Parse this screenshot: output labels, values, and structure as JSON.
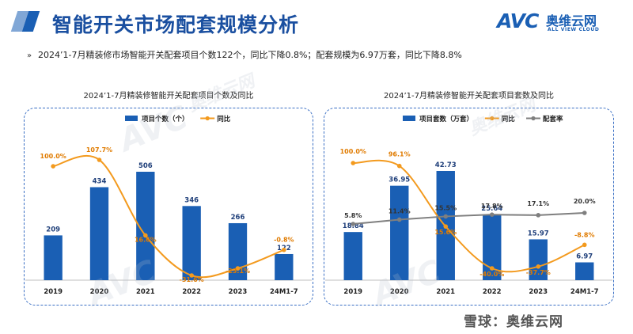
{
  "header": {
    "title": "智能开关市场配套规模分析",
    "logo_mark": "AVC",
    "logo_cn": "奥维云网",
    "logo_en": "ALL VIEW CLOUD"
  },
  "summary": {
    "bullet_icon": "double-chevron-right-icon",
    "text": "2024’1-7月精装修市场智能开关配套项目个数122个，同比下降0.8%；配套规模为6.97万套，同比下降8.8%"
  },
  "footer": {
    "watermark_text": "雪球：奥维云网"
  },
  "colors": {
    "bar": "#1a5fb4",
    "yoy_line": "#f39a1e",
    "rate_line": "#7f7f7f",
    "frame": "#3a6fc4"
  },
  "chart_data": [
    {
      "type": "bar",
      "title": "2024’1-7月精装修智能开关配套项目个数及同比",
      "categories": [
        "2019",
        "2020",
        "2021",
        "2022",
        "2023",
        "24M1-7"
      ],
      "series": [
        {
          "name": "项目个数（个）",
          "kind": "bar",
          "values": [
            209,
            434,
            506,
            346,
            266,
            122
          ],
          "labels": [
            "209",
            "434",
            "506",
            "346",
            "266",
            "122"
          ]
        },
        {
          "name": "同比",
          "kind": "line",
          "values": [
            100.0,
            107.7,
            16.6,
            -31.6,
            -23.1,
            -0.8
          ],
          "labels": [
            "100.0%",
            "107.7%",
            "16.6%",
            "-31.6%",
            "-23.1%",
            "-0.8%"
          ]
        }
      ],
      "legend_position": "top",
      "grid": false
    },
    {
      "type": "bar",
      "title": "2024’1-7月精装修智能开关配套项目套数及同比",
      "categories": [
        "2019",
        "2020",
        "2021",
        "2022",
        "2023",
        "24M1-7"
      ],
      "series": [
        {
          "name": "项目套数（万套）",
          "kind": "bar",
          "values": [
            18.84,
            36.95,
            42.73,
            25.64,
            15.97,
            6.97
          ],
          "labels": [
            "18.84",
            "36.95",
            "42.73",
            "25.64",
            "15.97",
            "6.97"
          ]
        },
        {
          "name": "同比",
          "kind": "line",
          "values": [
            100.0,
            96.1,
            15.6,
            -40.0,
            -37.7,
            -8.8
          ],
          "labels": [
            "100.0%",
            "96.1%",
            "15.6%",
            "-40.0%",
            "-37.7%",
            "-8.8%"
          ]
        },
        {
          "name": "配套率",
          "kind": "line",
          "values": [
            5.8,
            11.4,
            15.5,
            17.8,
            17.1,
            20.0
          ],
          "labels": [
            "5.8%",
            "11.4%",
            "15.5%",
            "17.8%",
            "17.1%",
            "20.0%"
          ]
        }
      ],
      "legend_position": "top",
      "grid": false
    }
  ]
}
